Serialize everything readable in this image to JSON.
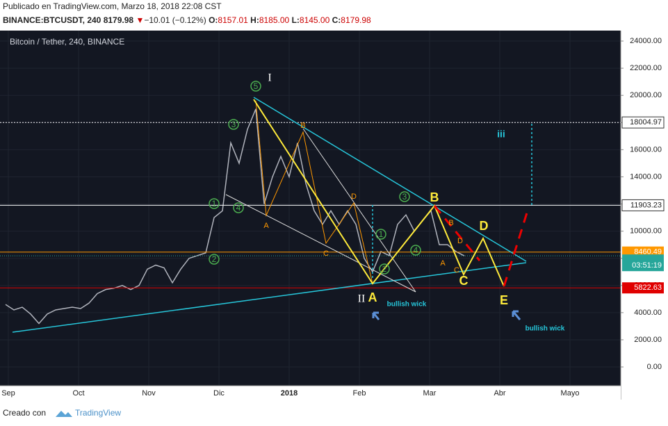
{
  "header": {
    "published": "Publicado en TradingView.com, Marzo 18, 2018 22:08 CST",
    "symbol": "BINANCE:BTCUSDT, 240",
    "last": "8179.98",
    "arrow": "▼",
    "change": "−10.01 (−0.12%)",
    "o_label": "O:",
    "o": "8157.01",
    "h_label": "H:",
    "h": "8185.00",
    "l_label": "L:",
    "l": "8145.00",
    "c_label": "C:",
    "c": "8179.98"
  },
  "chart_data": {
    "type": "line",
    "title": "Bitcoin / Tether, 240, BINANCE",
    "x_labels": [
      "Sep",
      "Oct",
      "Nov",
      "Dic",
      "2018",
      "Feb",
      "Mar",
      "Abr",
      "Mayo"
    ],
    "series": [
      {
        "color": "#b2b5be",
        "values": [
          4600,
          4200,
          4400,
          3900,
          3200,
          3900,
          4200,
          4300,
          4400,
          4300,
          4700,
          5400,
          5700,
          5800,
          6000,
          5700,
          6000,
          7200,
          7500,
          7300,
          6200,
          7200,
          8000,
          8200,
          8400,
          11000,
          11500,
          16500,
          15000,
          17500,
          19000,
          12000,
          14000,
          15500,
          14000,
          16500,
          13500,
          11500,
          10500,
          11500,
          10500,
          11500,
          10500,
          8000,
          7000,
          8500,
          8200,
          10500,
          11200,
          10000,
          10800,
          11500,
          9000,
          9000,
          8500,
          8180
        ]
      }
    ],
    "ylim": [
      -1380,
      24770
    ],
    "yticks": [
      {
        "value": 0,
        "label": "0.00"
      },
      {
        "value": 2000,
        "label": "2000.00"
      },
      {
        "value": 4000,
        "label": "4000.00"
      },
      {
        "value": 6000,
        "label": "6000.00"
      },
      {
        "value": 8000,
        "label": "8000.00"
      },
      {
        "value": 10000,
        "label": "10000.00"
      },
      {
        "value": 12000,
        "label": "12000.00"
      },
      {
        "value": 14000,
        "label": "14000.00"
      },
      {
        "value": 16000,
        "label": "16000.00"
      },
      {
        "value": 18000,
        "label": "18000.00"
      },
      {
        "value": 20000,
        "label": "20000.00"
      },
      {
        "value": 22000,
        "label": "22000.00"
      },
      {
        "value": 24000,
        "label": "24000.00"
      }
    ],
    "levels": [
      {
        "value": 18004.97,
        "color": "#ffffff",
        "dash": true
      },
      {
        "value": 11903.23,
        "color": "#ffffff",
        "dash": false
      },
      {
        "value": 8460.49,
        "color": "#ff9800",
        "dash": false
      },
      {
        "value": 5822.63,
        "color": "#e00000",
        "dash": false
      }
    ],
    "last_price": 8179.98,
    "countdown": "03:51:19",
    "annotations": [
      "I",
      "5",
      "3",
      "1",
      "4",
      "2",
      "B",
      "A",
      "C",
      "D",
      "II",
      "A",
      "bullish wick",
      "1",
      "2",
      "3",
      "4",
      "B",
      "B",
      "D",
      "A",
      "C",
      "C",
      "D",
      "E",
      "iii",
      "bullish wick"
    ]
  },
  "footer": {
    "made": "Creado con",
    "brand": "TradingView"
  }
}
